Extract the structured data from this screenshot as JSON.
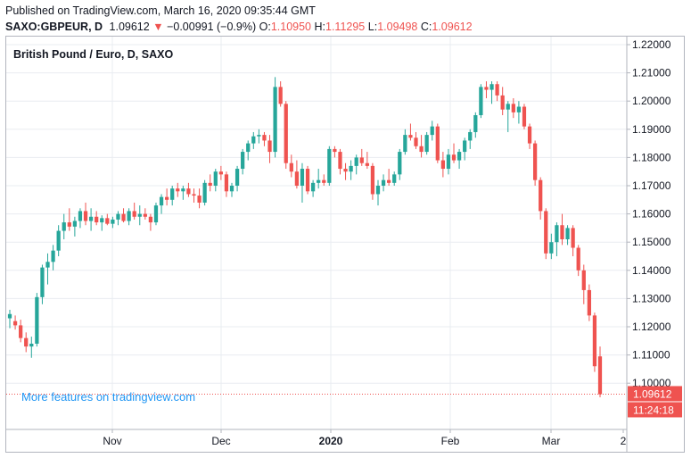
{
  "header": {
    "published": "Published on TradingView.com, March 16, 2020 09:35:44 GMT",
    "symbol": "SAXO:GBPEUR, D",
    "last": "1.09612",
    "change_arrow": "▼",
    "change": "−0.00991 (−0.9%)",
    "o_label": "O:",
    "o_value": "1.10950",
    "h_label": "H:",
    "h_value": "1.11295",
    "l_label": "L:",
    "l_value": "1.09498",
    "c_label": "C:",
    "c_value": "1.09612"
  },
  "chart_title": "British Pound / Euro, D, SAXO",
  "watermark": "More features on tradingview.com",
  "price_badge": "1.09612",
  "timer_badge": "11:24:18",
  "colors": {
    "up": "#26a69a",
    "down": "#ef5350",
    "grid": "#e9ecf1",
    "axis_text": "#131722",
    "badge_bg": "#ef5350",
    "price_line": "#ef5350"
  },
  "chart_data": {
    "type": "candlestick",
    "title": "British Pound / Euro, D, SAXO",
    "y_ticks": [
      "1.22000",
      "1.21000",
      "1.20000",
      "1.19000",
      "1.18000",
      "1.17000",
      "1.16000",
      "1.15000",
      "1.14000",
      "1.13000",
      "1.12000",
      "1.11000",
      "1.10000"
    ],
    "x_ticks": [
      "Nov",
      "Dec",
      "2020",
      "Feb",
      "Mar",
      "2"
    ],
    "ylim": [
      1.0875,
      1.2235
    ],
    "last_price": 1.09612,
    "ohlc": [
      [
        1.123,
        1.126,
        1.1195,
        1.1245
      ],
      [
        1.122,
        1.124,
        1.119,
        1.1205
      ],
      [
        1.1205,
        1.1225,
        1.1145,
        1.116
      ],
      [
        1.116,
        1.118,
        1.111,
        1.113
      ],
      [
        1.113,
        1.1165,
        1.109,
        1.114
      ],
      [
        1.114,
        1.132,
        1.113,
        1.1305
      ],
      [
        1.1305,
        1.142,
        1.128,
        1.141
      ],
      [
        1.141,
        1.146,
        1.135,
        1.143
      ],
      [
        1.143,
        1.149,
        1.14,
        1.147
      ],
      [
        1.147,
        1.156,
        1.145,
        1.154
      ],
      [
        1.154,
        1.16,
        1.151,
        1.157
      ],
      [
        1.157,
        1.162,
        1.154,
        1.1555
      ],
      [
        1.1555,
        1.159,
        1.152,
        1.1575
      ],
      [
        1.1575,
        1.162,
        1.155,
        1.161
      ],
      [
        1.161,
        1.164,
        1.156,
        1.1575
      ],
      [
        1.1575,
        1.162,
        1.154,
        1.159
      ],
      [
        1.159,
        1.161,
        1.156,
        1.157
      ],
      [
        1.157,
        1.1595,
        1.154,
        1.1585
      ],
      [
        1.1585,
        1.16,
        1.156,
        1.1565
      ],
      [
        1.1565,
        1.159,
        1.155,
        1.158
      ],
      [
        1.158,
        1.161,
        1.156,
        1.16
      ],
      [
        1.16,
        1.162,
        1.157,
        1.1575
      ],
      [
        1.1575,
        1.162,
        1.156,
        1.161
      ],
      [
        1.161,
        1.164,
        1.158,
        1.159
      ],
      [
        1.159,
        1.163,
        1.156,
        1.16
      ],
      [
        1.16,
        1.162,
        1.158,
        1.159
      ],
      [
        1.159,
        1.16,
        1.154,
        1.157
      ],
      [
        1.157,
        1.164,
        1.156,
        1.163
      ],
      [
        1.163,
        1.167,
        1.16,
        1.166
      ],
      [
        1.166,
        1.169,
        1.163,
        1.165
      ],
      [
        1.165,
        1.17,
        1.163,
        1.169
      ],
      [
        1.169,
        1.171,
        1.166,
        1.168
      ],
      [
        1.168,
        1.17,
        1.165,
        1.169
      ],
      [
        1.169,
        1.171,
        1.166,
        1.167
      ],
      [
        1.167,
        1.169,
        1.164,
        1.1665
      ],
      [
        1.1665,
        1.169,
        1.162,
        1.164
      ],
      [
        1.164,
        1.172,
        1.163,
        1.171
      ],
      [
        1.171,
        1.174,
        1.168,
        1.17
      ],
      [
        1.17,
        1.176,
        1.168,
        1.175
      ],
      [
        1.175,
        1.177,
        1.172,
        1.174
      ],
      [
        1.174,
        1.175,
        1.166,
        1.168
      ],
      [
        1.168,
        1.171,
        1.166,
        1.17
      ],
      [
        1.17,
        1.177,
        1.168,
        1.176
      ],
      [
        1.176,
        1.183,
        1.174,
        1.182
      ],
      [
        1.182,
        1.186,
        1.179,
        1.185
      ],
      [
        1.185,
        1.189,
        1.183,
        1.1875
      ],
      [
        1.1875,
        1.19,
        1.185,
        1.188
      ],
      [
        1.188,
        1.189,
        1.184,
        1.186
      ],
      [
        1.186,
        1.188,
        1.178,
        1.182
      ],
      [
        1.182,
        1.2085,
        1.18,
        1.205
      ],
      [
        1.205,
        1.207,
        1.198,
        1.199
      ],
      [
        1.199,
        1.2,
        1.176,
        1.178
      ],
      [
        1.178,
        1.181,
        1.173,
        1.175
      ],
      [
        1.175,
        1.179,
        1.169,
        1.17
      ],
      [
        1.17,
        1.178,
        1.164,
        1.176
      ],
      [
        1.176,
        1.177,
        1.167,
        1.168
      ],
      [
        1.168,
        1.172,
        1.166,
        1.171
      ],
      [
        1.171,
        1.176,
        1.169,
        1.172
      ],
      [
        1.172,
        1.174,
        1.17,
        1.171
      ],
      [
        1.171,
        1.184,
        1.17,
        1.183
      ],
      [
        1.183,
        1.184,
        1.18,
        1.182
      ],
      [
        1.182,
        1.183,
        1.174,
        1.176
      ],
      [
        1.176,
        1.178,
        1.172,
        1.175
      ],
      [
        1.175,
        1.179,
        1.172,
        1.177
      ],
      [
        1.177,
        1.181,
        1.174,
        1.18
      ],
      [
        1.18,
        1.183,
        1.177,
        1.178
      ],
      [
        1.178,
        1.182,
        1.176,
        1.177
      ],
      [
        1.177,
        1.178,
        1.165,
        1.167
      ],
      [
        1.167,
        1.172,
        1.163,
        1.17
      ],
      [
        1.17,
        1.174,
        1.168,
        1.172
      ],
      [
        1.172,
        1.176,
        1.17,
        1.171
      ],
      [
        1.171,
        1.175,
        1.17,
        1.174
      ],
      [
        1.174,
        1.183,
        1.172,
        1.182
      ],
      [
        1.182,
        1.19,
        1.181,
        1.188
      ],
      [
        1.188,
        1.192,
        1.186,
        1.187
      ],
      [
        1.187,
        1.189,
        1.183,
        1.184
      ],
      [
        1.184,
        1.188,
        1.18,
        1.182
      ],
      [
        1.182,
        1.189,
        1.181,
        1.188
      ],
      [
        1.188,
        1.193,
        1.186,
        1.191
      ],
      [
        1.191,
        1.192,
        1.178,
        1.179
      ],
      [
        1.179,
        1.182,
        1.173,
        1.176
      ],
      [
        1.176,
        1.183,
        1.174,
        1.181
      ],
      [
        1.181,
        1.185,
        1.178,
        1.179
      ],
      [
        1.179,
        1.183,
        1.176,
        1.182
      ],
      [
        1.182,
        1.187,
        1.179,
        1.186
      ],
      [
        1.186,
        1.19,
        1.183,
        1.189
      ],
      [
        1.189,
        1.196,
        1.187,
        1.195
      ],
      [
        1.195,
        1.206,
        1.194,
        1.205
      ],
      [
        1.205,
        1.207,
        1.201,
        1.204
      ],
      [
        1.204,
        1.207,
        1.199,
        1.206
      ],
      [
        1.206,
        1.207,
        1.2,
        1.202
      ],
      [
        1.202,
        1.205,
        1.195,
        1.197
      ],
      [
        1.197,
        1.2,
        1.189,
        1.199
      ],
      [
        1.199,
        1.201,
        1.194,
        1.196
      ],
      [
        1.196,
        1.2,
        1.192,
        1.198
      ],
      [
        1.198,
        1.199,
        1.19,
        1.191
      ],
      [
        1.191,
        1.192,
        1.183,
        1.185
      ],
      [
        1.185,
        1.186,
        1.17,
        1.172
      ],
      [
        1.172,
        1.173,
        1.158,
        1.161
      ],
      [
        1.161,
        1.162,
        1.144,
        1.146
      ],
      [
        1.146,
        1.153,
        1.144,
        1.15
      ],
      [
        1.15,
        1.157,
        1.145,
        1.156
      ],
      [
        1.156,
        1.16,
        1.149,
        1.151
      ],
      [
        1.151,
        1.156,
        1.149,
        1.155
      ],
      [
        1.155,
        1.156,
        1.145,
        1.148
      ],
      [
        1.148,
        1.149,
        1.138,
        1.14
      ],
      [
        1.14,
        1.142,
        1.128,
        1.133
      ],
      [
        1.133,
        1.135,
        1.122,
        1.124
      ],
      [
        1.124,
        1.125,
        1.104,
        1.106
      ],
      [
        1.1095,
        1.113,
        1.095,
        1.0961
      ]
    ]
  }
}
